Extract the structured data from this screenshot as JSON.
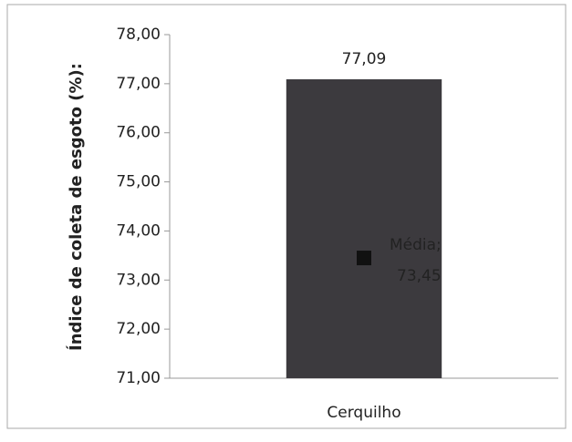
{
  "chart_data": {
    "type": "bar",
    "y_label": "Índice de coleta de esgoto (%):",
    "categories": [
      "Cerquilho"
    ],
    "values": [
      77.09
    ],
    "value_labels": [
      "77,09"
    ],
    "color": "#3c3a3e",
    "ylim": [
      71,
      78
    ],
    "yticks": [
      {
        "value": 71,
        "label": "71,00"
      },
      {
        "value": 72,
        "label": "72,00"
      },
      {
        "value": 73,
        "label": "73,00"
      },
      {
        "value": 74,
        "label": "74,00"
      },
      {
        "value": 75,
        "label": "75,00"
      },
      {
        "value": 76,
        "label": "76,00"
      },
      {
        "value": 77,
        "label": "77,00"
      },
      {
        "value": 78,
        "label": "78,00"
      }
    ],
    "mean": {
      "label": "Média;",
      "value": 73.45,
      "value_label": "73,45",
      "color": "#111111"
    }
  }
}
